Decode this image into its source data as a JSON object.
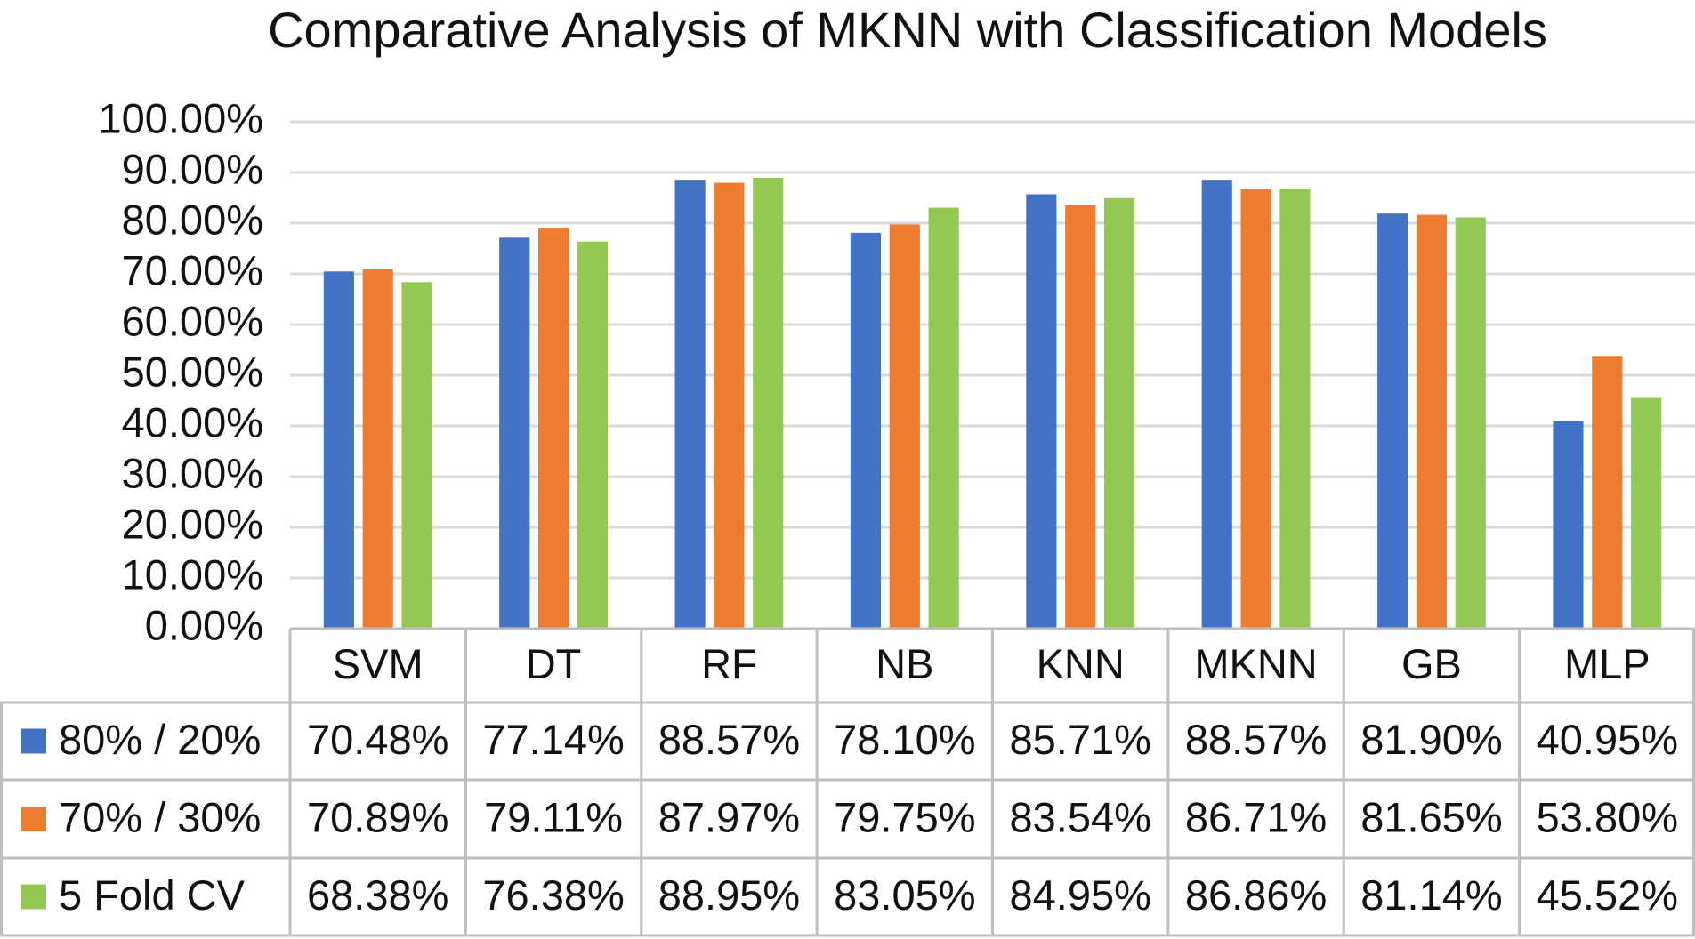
{
  "chart_data": {
    "type": "bar",
    "title": "Comparative Analysis of MKNN with Classification Models",
    "categories": [
      "SVM",
      "DT",
      "RF",
      "NB",
      "KNN",
      "MKNN",
      "GB",
      "MLP"
    ],
    "series": [
      {
        "name": "80% / 20%",
        "color": "#4472c4",
        "values": [
          70.48,
          77.14,
          88.57,
          78.1,
          85.71,
          88.57,
          81.9,
          40.95
        ],
        "value_labels": [
          "70.48%",
          "77.14%",
          "88.57%",
          "78.10%",
          "85.71%",
          "88.57%",
          "81.90%",
          "40.95%"
        ]
      },
      {
        "name": "70% / 30%",
        "color": "#ed7d31",
        "values": [
          70.89,
          79.11,
          87.97,
          79.75,
          83.54,
          86.71,
          81.65,
          53.8
        ],
        "value_labels": [
          "70.89%",
          "79.11%",
          "87.97%",
          "79.75%",
          "83.54%",
          "86.71%",
          "81.65%",
          "53.80%"
        ]
      },
      {
        "name": "5 Fold CV",
        "color": "#92c853",
        "values": [
          68.38,
          76.38,
          88.95,
          83.05,
          84.95,
          86.86,
          81.14,
          45.52
        ],
        "value_labels": [
          "68.38%",
          "76.38%",
          "88.95%",
          "83.05%",
          "84.95%",
          "86.86%",
          "81.14%",
          "45.52%"
        ]
      }
    ],
    "ylim": [
      0,
      100
    ],
    "yticks": [
      {
        "value": 0,
        "label": "0.00%"
      },
      {
        "value": 10,
        "label": "10.00%"
      },
      {
        "value": 20,
        "label": "20.00%"
      },
      {
        "value": 30,
        "label": "30.00%"
      },
      {
        "value": 40,
        "label": "40.00%"
      },
      {
        "value": 50,
        "label": "50.00%"
      },
      {
        "value": 60,
        "label": "60.00%"
      },
      {
        "value": 70,
        "label": "70.00%"
      },
      {
        "value": 80,
        "label": "80.00%"
      },
      {
        "value": 90,
        "label": "90.00%"
      },
      {
        "value": 100,
        "label": "100.00%"
      }
    ],
    "grid": true
  }
}
